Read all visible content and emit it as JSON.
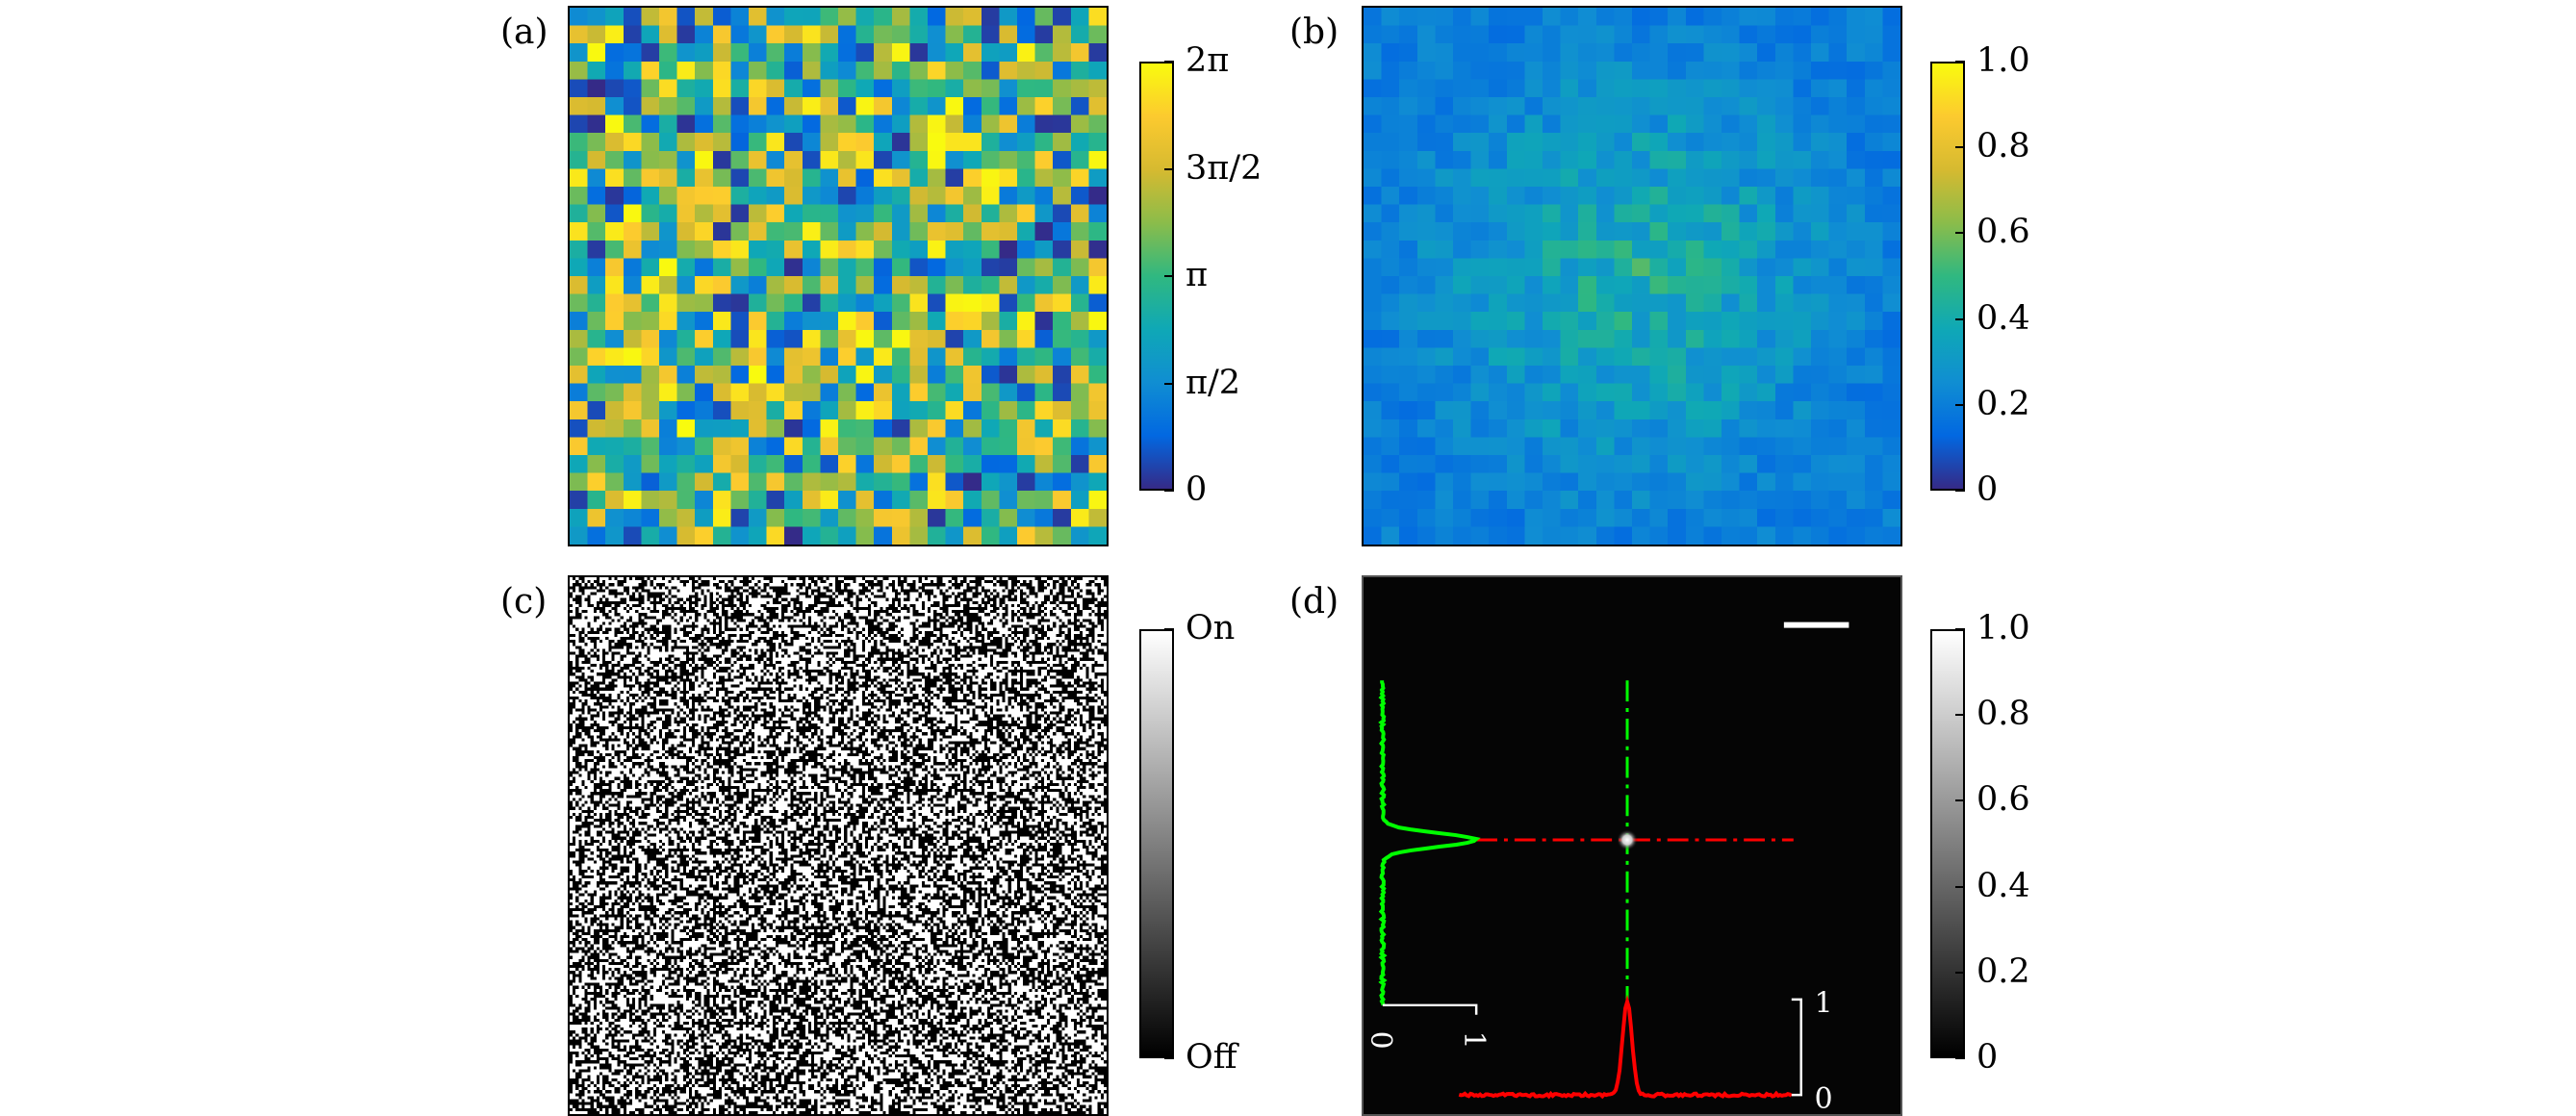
{
  "figure": {
    "panels": [
      {
        "id": "a",
        "label": "(a)"
      },
      {
        "id": "b",
        "label": "(b)"
      },
      {
        "id": "c",
        "label": "(c)"
      },
      {
        "id": "d",
        "label": "(d)"
      }
    ]
  },
  "chart_data": [
    {
      "panel": "a",
      "type": "heatmap",
      "description_key": "phase",
      "grid": [
        30,
        30
      ],
      "colormap": "parula",
      "colorbar": {
        "min": 0,
        "max": 6.2832,
        "ticks": [
          "0",
          "π/2",
          "π",
          "3π/2",
          "2π"
        ]
      }
    },
    {
      "panel": "b",
      "type": "heatmap",
      "description_key": "amplitude",
      "grid": [
        30,
        30
      ],
      "colormap": "parula",
      "colorbar": {
        "min": 0,
        "max": 1.0,
        "ticks": [
          "0",
          "0.2",
          "0.4",
          "0.6",
          "0.8",
          "1.0"
        ]
      }
    },
    {
      "panel": "c",
      "type": "heatmap",
      "description_key": "binary",
      "grid": [
        180,
        180
      ],
      "colormap": "gray",
      "colorbar": {
        "min": 0,
        "max": 1,
        "ticks": [
          "Off",
          "On"
        ]
      }
    },
    {
      "panel": "d",
      "type": "heatmap",
      "description_key": "focus",
      "colormap": "gray",
      "colorbar": {
        "min": 0,
        "max": 1.0,
        "ticks": [
          "0",
          "0.2",
          "0.4",
          "0.6",
          "0.8",
          "1.0"
        ]
      },
      "profiles": {
        "vertical_color": "#00ff00",
        "horizontal_color": "#ff0000",
        "vertical_scale_labels": [
          "0",
          "1"
        ],
        "horizontal_scale_labels": [
          "0",
          "1"
        ]
      }
    }
  ]
}
